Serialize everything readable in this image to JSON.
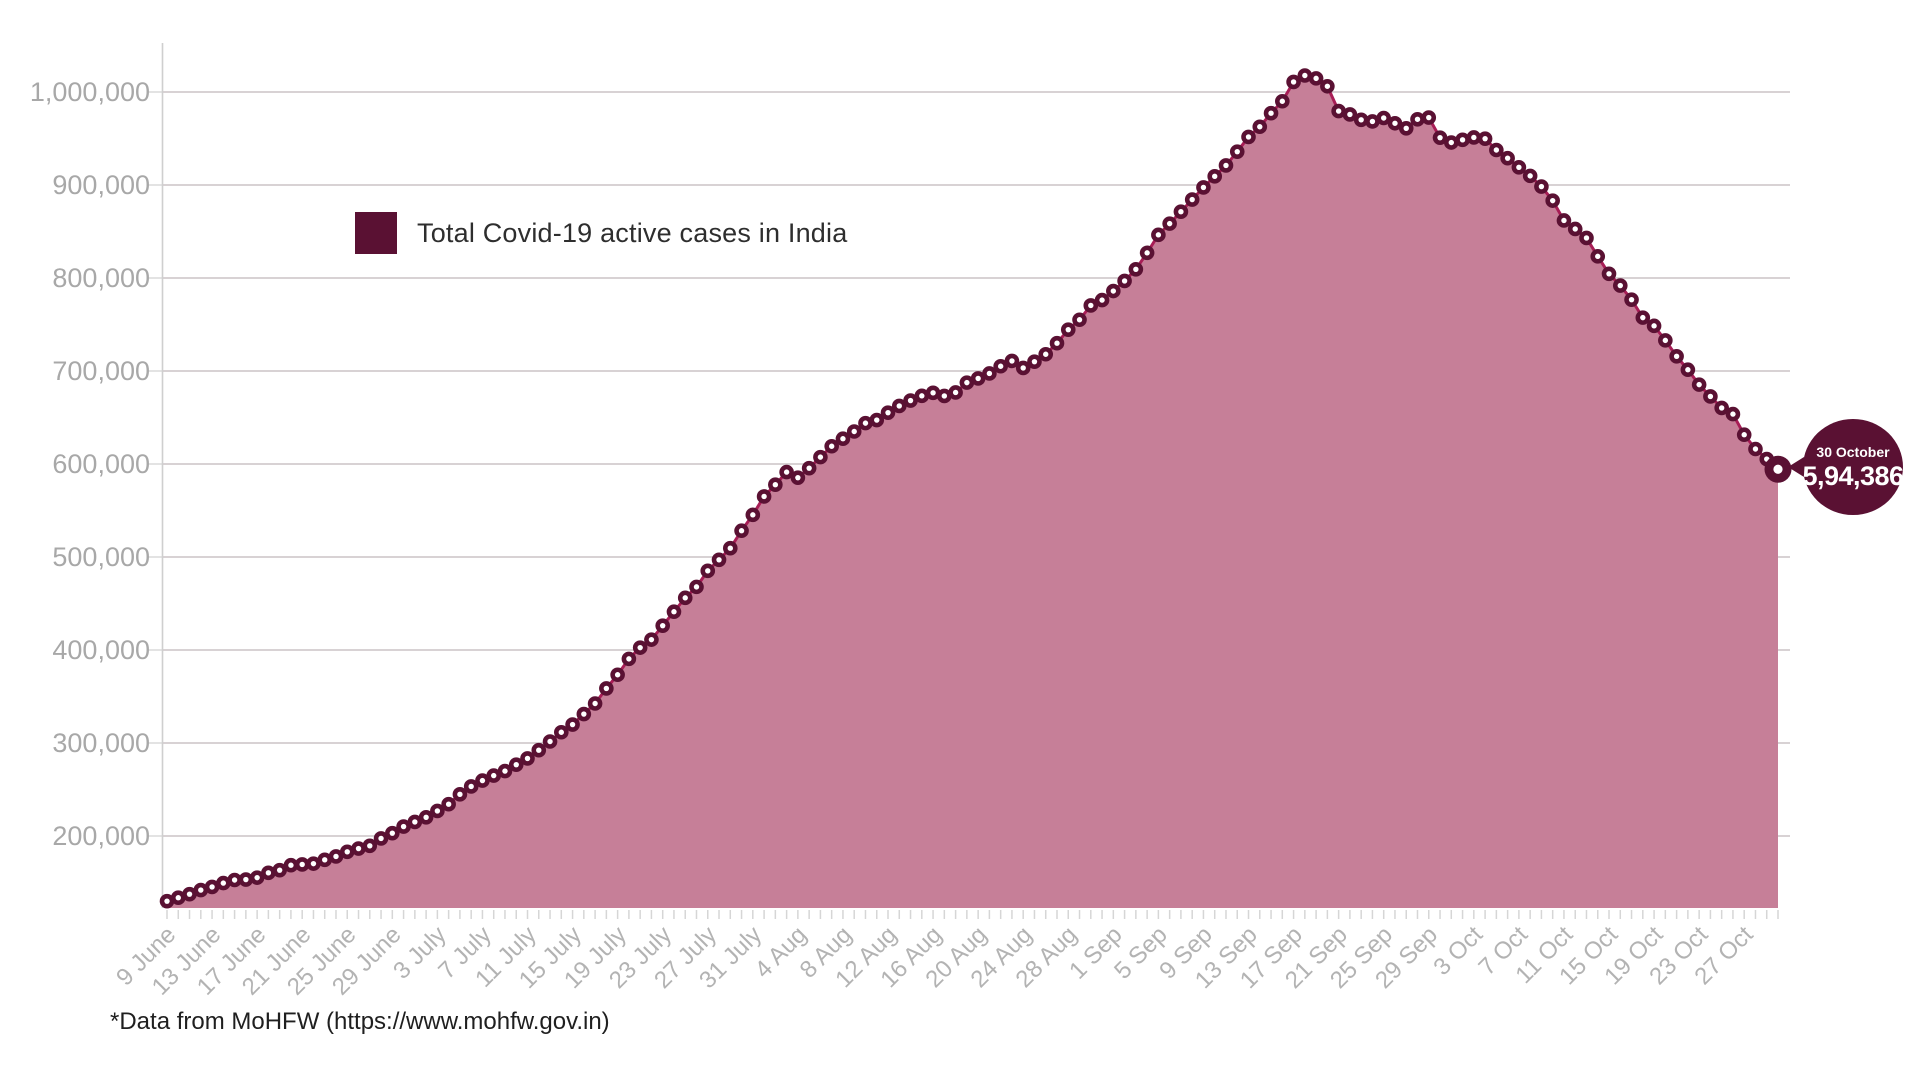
{
  "legend": {
    "label": "Total Covid-19 active cases in India"
  },
  "callout": {
    "date": "30 October",
    "value": "5,94,386"
  },
  "footer": {
    "note": "*Data from MoHFW (https://www.mohfw.gov.in)"
  },
  "colors": {
    "marker": "#5a1133",
    "marker_hole": "#ffffff",
    "line": "#a81d56",
    "fill": "#c67f98",
    "callout_bg": "#5a1133",
    "grid": "#dadada",
    "axis": "#cfcfcf",
    "x_tick": "#d6d6d6",
    "y_label": "#a8a8a8",
    "x_label": "#b3b3b3"
  },
  "chart_data": {
    "type": "area",
    "title": "",
    "series_name": "Total Covid-19 active cases in India",
    "legend_position": "top-left",
    "grid": "horizontal",
    "x_start_date": "9 June",
    "x_end_date": "30 October",
    "x_tick_every_days": 4,
    "x_tick_labels": [
      "9 June",
      "13 June",
      "17 June",
      "21 June",
      "25 June",
      "29 June",
      "3 July",
      "7 July",
      "11 July",
      "15 July",
      "19 July",
      "23 July",
      "27 July",
      "31 July",
      "4 Aug",
      "8 Aug",
      "12 Aug",
      "16 Aug",
      "20 Aug",
      "24 Aug",
      "28 Aug",
      "1 Sep",
      "5 Sep",
      "9 Sep",
      "13 Sep",
      "17 Sep",
      "21 Sep",
      "25 Sep",
      "29 Sep",
      "3 Oct",
      "7 Oct",
      "11 Oct",
      "15 Oct",
      "19 Oct",
      "23 Oct",
      "27 Oct"
    ],
    "y_tick_labels": [
      "200,000",
      "300,000",
      "400,000",
      "500,000",
      "600,000",
      "700,000",
      "800,000",
      "900,000",
      "1,000,000"
    ],
    "y_tick_values": [
      200000,
      300000,
      400000,
      500000,
      600000,
      700000,
      800000,
      900000,
      1000000
    ],
    "ylim": [
      121500,
      1056000
    ],
    "values": [
      129917,
      133632,
      137448,
      141842,
      145216,
      149348,
      152679,
      153178,
      155227,
      160384,
      163248,
      168572,
      169451,
      170269,
      174387,
      178014,
      183022,
      186514,
      189463,
      197387,
      203051,
      210120,
      215125,
      220114,
      226947,
      234205,
      244814,
      253287,
      259557,
      264944,
      269789,
      276685,
      283407,
      292258,
      301609,
      311565,
      319840,
      331146,
      342473,
      358692,
      373379,
      390459,
      402529,
      411133,
      426167,
      441143,
      456071,
      467882,
      485114,
      496988,
      509447,
      528242,
      545318,
      565103,
      577730,
      591290,
      585298,
      595501,
      607384,
      619088,
      627168,
      634945,
      643948,
      647208,
      655197,
      662430,
      668220,
      673269,
      676514,
      673166,
      676900,
      687491,
      692028,
      697330,
      705108,
      710856,
      703267,
      710048,
      718021,
      729896,
      744424,
      755102,
      770486,
      776237,
      785996,
      796843,
      809377,
      827031,
      846395,
      858461,
      871288,
      884372,
      897394,
      909313,
      921070,
      935822,
      951698,
      962640,
      977189,
      990061,
      1010824,
      1017754,
      1014649,
      1006159,
      979466,
      975861,
      970116,
      968377,
      972035,
      966382,
      960969,
      970669,
      972532,
      950878,
      945678,
      948565,
      951090,
      949808,
      937625,
      928853,
      919023,
      909802,
      898354,
      883185,
      861853,
      852706,
      843057,
      823275,
      804528,
      791851,
      776696,
      757399,
      748538,
      732931,
      715812,
      701359,
      685361,
      672647,
      660308,
      653656,
      631473,
      616129,
      605344,
      594386
    ],
    "last_point": {
      "date": "30 October",
      "value": 594386
    }
  }
}
